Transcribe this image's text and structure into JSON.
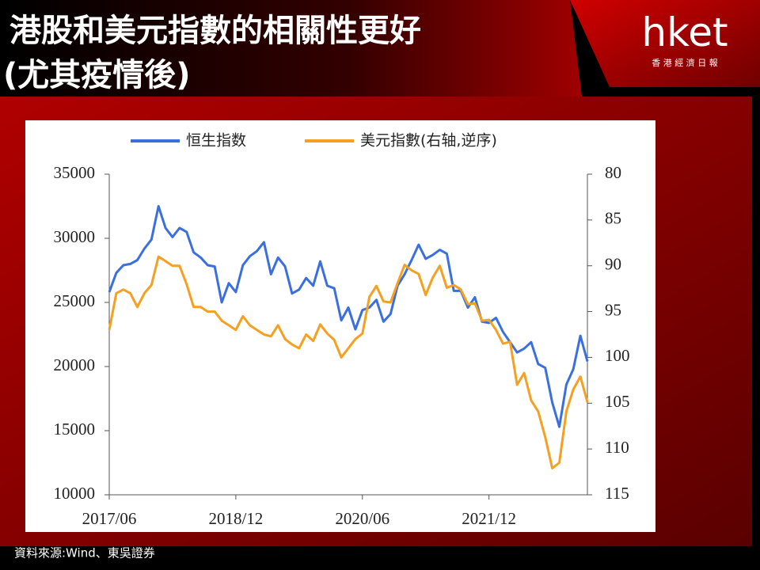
{
  "header": {
    "title": [
      "港股和美元指數的相關性更好",
      "(尤其疫情後)"
    ],
    "logo": "hket",
    "logo_sub": "香 港 經 濟 日 報"
  },
  "chart_data": {
    "type": "line",
    "x": [
      "2017/06",
      "2017/07",
      "2017/08",
      "2017/09",
      "2017/10",
      "2017/11",
      "2017/12",
      "2018/01",
      "2018/02",
      "2018/03",
      "2018/04",
      "2018/05",
      "2018/06",
      "2018/07",
      "2018/08",
      "2018/09",
      "2018/10",
      "2018/11",
      "2018/12",
      "2019/01",
      "2019/02",
      "2019/03",
      "2019/04",
      "2019/05",
      "2019/06",
      "2019/07",
      "2019/08",
      "2019/09",
      "2019/10",
      "2019/11",
      "2019/12",
      "2020/01",
      "2020/02",
      "2020/03",
      "2020/04",
      "2020/05",
      "2020/06",
      "2020/07",
      "2020/08",
      "2020/09",
      "2020/10",
      "2020/11",
      "2020/12",
      "2021/01",
      "2021/02",
      "2021/03",
      "2021/04",
      "2021/05",
      "2021/06",
      "2021/07",
      "2021/08",
      "2021/09",
      "2021/10",
      "2021/11",
      "2021/12",
      "2022/01",
      "2022/02",
      "2022/03",
      "2022/04",
      "2022/05",
      "2022/06",
      "2022/07",
      "2022/08",
      "2022/09",
      "2022/10",
      "2022/11",
      "2022/12",
      "2023/01",
      "2023/02"
    ],
    "series": [
      {
        "name": "恒生指数",
        "color": "#3a6fe0",
        "axis": "y",
        "values": [
          25800,
          27300,
          27900,
          28000,
          28300,
          29200,
          29900,
          32500,
          30800,
          30100,
          30800,
          30500,
          28900,
          28500,
          27900,
          27800,
          25000,
          26500,
          25800,
          27900,
          28600,
          29000,
          29700,
          27200,
          28500,
          27800,
          25700,
          26000,
          26900,
          26300,
          28200,
          26300,
          26100,
          23600,
          24600,
          22900,
          24400,
          24600,
          25200,
          23500,
          24100,
          26300,
          27200,
          28300,
          29500,
          28400,
          28700,
          29100,
          28800,
          25900,
          25900,
          24600,
          25400,
          23500,
          23400,
          23800,
          22700,
          21900,
          21100,
          21400,
          21900,
          20200,
          19900,
          17200,
          15300,
          18600,
          19800,
          22400,
          20400
        ]
      },
      {
        "name": "美元指數(右轴,逆序)",
        "color": "#f5a020",
        "axis": "y2",
        "values": [
          97,
          93,
          92.6,
          93,
          94.5,
          93,
          92.1,
          89,
          89.5,
          90,
          90,
          92,
          94.5,
          94.5,
          95,
          95,
          96,
          96.5,
          97,
          95.5,
          96.5,
          97,
          97.5,
          97.7,
          96.5,
          98,
          98.6,
          99,
          97.5,
          98.2,
          96.4,
          97.4,
          98.1,
          100,
          99,
          98,
          97.4,
          93.4,
          92.2,
          93.9,
          94,
          91.9,
          89.9,
          90.5,
          90.9,
          93.2,
          91.3,
          90,
          92.4,
          92.1,
          92.6,
          94.2,
          94.1,
          96,
          95.9,
          97,
          98.5,
          98.3,
          103,
          101.7,
          104.7,
          105.9,
          108.7,
          112.1,
          111.5,
          105.9,
          103.5,
          102.1,
          104.9
        ]
      }
    ],
    "xlim": [
      "2017/06",
      "2023/02"
    ],
    "xticks": [
      "2017/06",
      "2018/12",
      "2020/06",
      "2021/12"
    ],
    "ylim": [
      10000,
      35000
    ],
    "yticks": [
      10000,
      15000,
      20000,
      25000,
      30000,
      35000
    ],
    "y2lim": [
      115,
      80
    ],
    "y2ticks": [
      80,
      85,
      90,
      95,
      100,
      105,
      110,
      115
    ],
    "grid": false
  },
  "source": "資料來源:Wind、東吳證券"
}
